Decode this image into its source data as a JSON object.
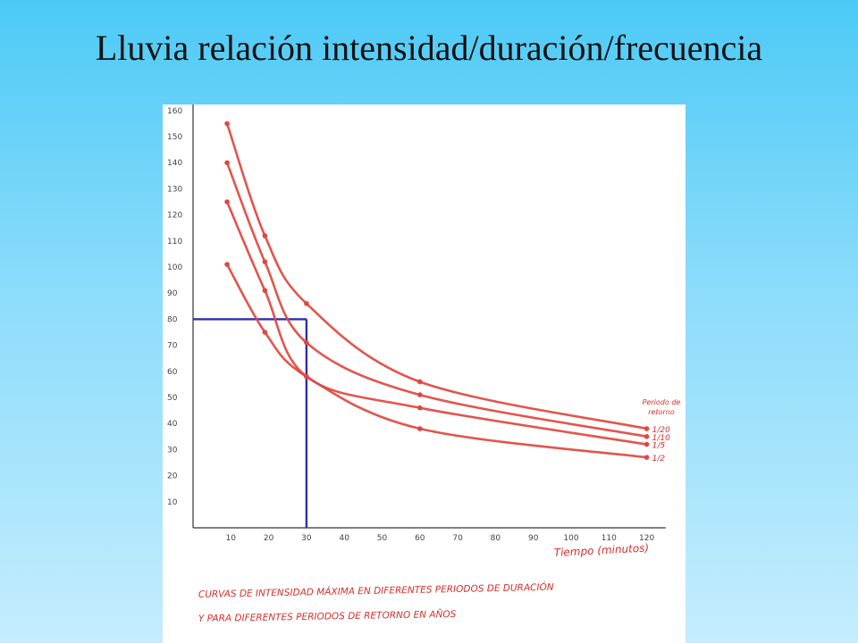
{
  "slide": {
    "title": "Lluvia relación intensidad/duración/frecuencia"
  },
  "colors": {
    "curve": "#e0473e",
    "guide": "#2d2fa8",
    "axis": "#333333",
    "text_red": "#d2302c",
    "tick_text": "#444444"
  },
  "chart_data": {
    "type": "line",
    "xlabel": "Tiempo (minutos)",
    "ylabel": "",
    "xlim": [
      0,
      125
    ],
    "ylim": [
      0,
      162
    ],
    "x_ticks": [
      10,
      20,
      30,
      40,
      50,
      60,
      70,
      80,
      90,
      100,
      110,
      120
    ],
    "y_ticks": [
      10,
      20,
      30,
      40,
      50,
      60,
      70,
      80,
      90,
      100,
      110,
      120,
      130,
      140,
      150,
      160
    ],
    "legend_title": "Periodo de retorno",
    "series": [
      {
        "name": "1/20",
        "x": [
          9,
          19,
          30,
          60,
          120
        ],
        "y": [
          155,
          112,
          86,
          56,
          38
        ]
      },
      {
        "name": "1/10",
        "x": [
          9,
          19,
          30,
          60,
          120
        ],
        "y": [
          140,
          102,
          71,
          51,
          35
        ]
      },
      {
        "name": "1/5",
        "x": [
          9,
          19,
          30,
          60,
          120
        ],
        "y": [
          125,
          91,
          58,
          46,
          32
        ]
      },
      {
        "name": "1/2",
        "x": [
          9,
          19,
          30,
          60,
          120
        ],
        "y": [
          101,
          75,
          58,
          38,
          27
        ]
      }
    ],
    "guide_point": {
      "x": 30,
      "y": 80
    },
    "caption_lines": [
      "CURVAS DE INTENSIDAD MÁXIMA EN DIFERENTES PERIODOS DE DURACIÓN",
      "Y PARA DIFERENTES PERIODOS DE RETORNO EN AÑOS"
    ]
  }
}
